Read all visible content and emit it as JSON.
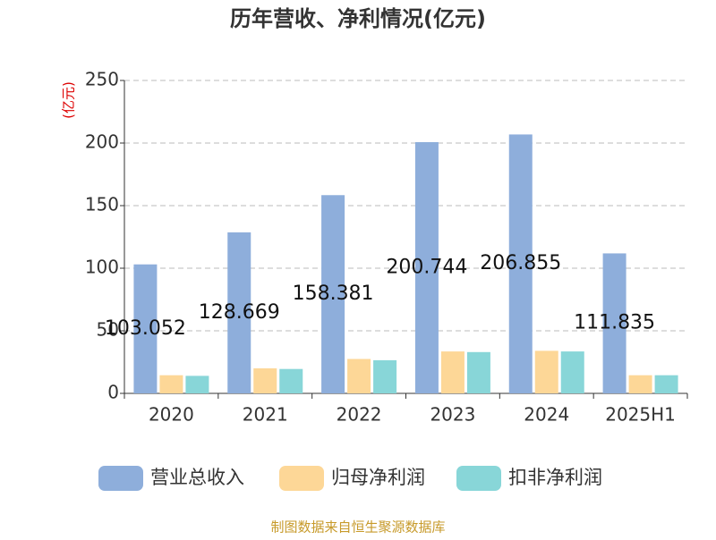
{
  "chart_data": {
    "type": "bar",
    "title": "历年营收、净利情况(亿元)",
    "y_label": "(亿元)",
    "categories": [
      "2020",
      "2021",
      "2022",
      "2023",
      "2024",
      "2025H1"
    ],
    "series": [
      {
        "name": "营业总收入",
        "color": "#8eaedb",
        "data_labels": true,
        "values": [
          103.052,
          128.669,
          158.381,
          200.744,
          206.855,
          111.835
        ]
      },
      {
        "name": "归母净利润",
        "color": "#fdd797",
        "values": [
          14.5,
          20,
          27.5,
          33.5,
          34,
          14.5
        ]
      },
      {
        "name": "扣非净利润",
        "color": "#88d6d8",
        "values": [
          14,
          19.5,
          26.5,
          33,
          33.5,
          14.5
        ]
      }
    ],
    "ylim": [
      0,
      250
    ],
    "yticks": [
      0,
      50,
      100,
      150,
      200,
      250
    ],
    "grid": true,
    "source": "制图数据来自恒生聚源数据库"
  }
}
